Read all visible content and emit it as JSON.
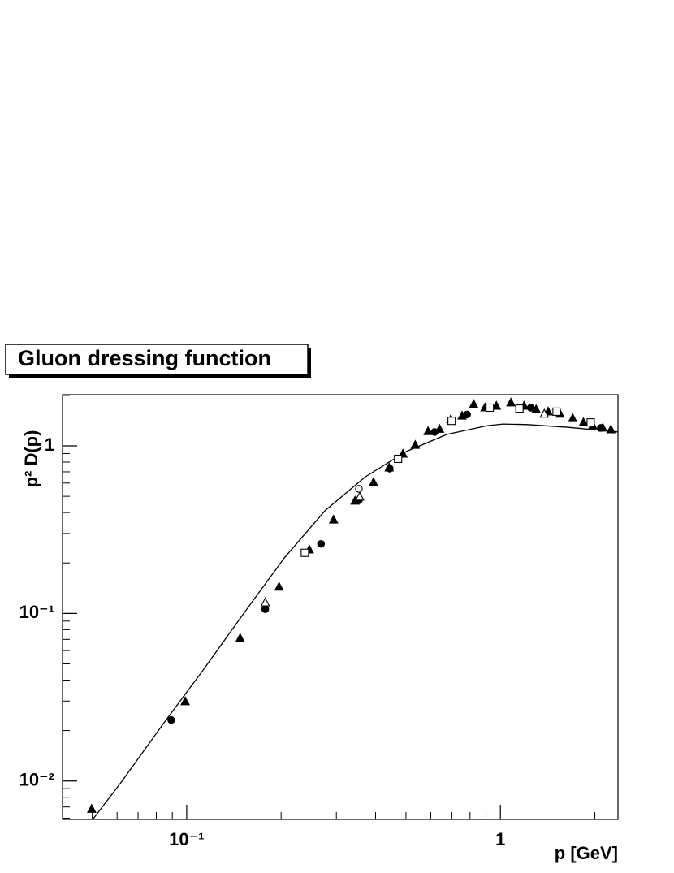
{
  "chart_data": {
    "type": "scatter",
    "title": "Gluon dressing function",
    "x_label": "p [GeV]",
    "y_label": "p² D(p)",
    "x_log": true,
    "y_log": true,
    "xlim": [
      0.0402,
      2.37
    ],
    "ylim": [
      0.0059,
      2.02
    ],
    "xticks": [
      {
        "value": 0.1,
        "label": "10⁻¹"
      },
      1
    ],
    "yticks": [
      {
        "value": 0.01,
        "label": "10⁻²"
      },
      {
        "value": 0.1,
        "label": "10⁻¹"
      },
      1
    ],
    "xminorticks": [
      0.05,
      0.06,
      0.07,
      0.08,
      0.09,
      0.2,
      0.3,
      0.4,
      0.5,
      0.6,
      0.7,
      0.8,
      0.9,
      2
    ],
    "yminorticks": [
      0.006,
      0.007,
      0.008,
      0.009,
      0.02,
      0.03,
      0.04,
      0.05,
      0.06,
      0.07,
      0.08,
      0.09,
      0.2,
      0.3,
      0.4,
      0.5,
      0.6,
      0.7,
      0.8,
      0.9,
      2
    ],
    "color": "#000000",
    "series": [
      {
        "marker": "triangle",
        "filled": true,
        "color": "#000000",
        "x": [
          0.0498,
          0.0989,
          0.148,
          0.197,
          0.246,
          0.294,
          0.344,
          0.394,
          0.442,
          0.489,
          0.535,
          0.588,
          0.64,
          0.695,
          0.755,
          0.822,
          0.893,
          0.971,
          1.08,
          1.19,
          1.3,
          1.42,
          1.55,
          1.7,
          1.84,
          1.97,
          2.12,
          2.25
        ],
        "values": [
          0.0068,
          0.0298,
          0.0711,
          0.144,
          0.24,
          0.362,
          0.469,
          0.606,
          0.74,
          0.895,
          1.01,
          1.22,
          1.26,
          1.44,
          1.51,
          1.77,
          1.69,
          1.73,
          1.81,
          1.73,
          1.65,
          1.6,
          1.55,
          1.46,
          1.38,
          1.32,
          1.28,
          1.25
        ]
      },
      {
        "marker": "circle",
        "filled": true,
        "color": "#000000",
        "x": [
          0.0893,
          0.178,
          0.268,
          0.354,
          0.444,
          0.617,
          0.783,
          1.25,
          2.09
        ],
        "values": [
          0.0231,
          0.106,
          0.26,
          0.474,
          0.732,
          1.21,
          1.54,
          1.69,
          1.28
        ]
      },
      {
        "marker": "square",
        "filled": false,
        "color": "#000000",
        "x": [
          0.238,
          0.472,
          0.699,
          0.925,
          1.15,
          1.51,
          1.94
        ],
        "values": [
          0.23,
          0.837,
          1.41,
          1.69,
          1.67,
          1.6,
          1.38
        ]
      },
      {
        "marker": "triangle",
        "filled": false,
        "color": "#000000",
        "x": [
          0.178,
          0.356,
          1.38
        ],
        "values": [
          0.116,
          0.496,
          1.55
        ]
      },
      {
        "marker": "circle",
        "filled": false,
        "color": "#000000",
        "x": [
          0.354
        ],
        "values": [
          0.554
        ]
      }
    ],
    "curve": {
      "color": "#000000",
      "x": [
        0.0502,
        0.062,
        0.0837,
        0.1125,
        0.152,
        0.205,
        0.276,
        0.371,
        0.501,
        0.675,
        0.909,
        1.02,
        1.22,
        1.65,
        2.37
      ],
      "values": [
        0.0059,
        0.0099,
        0.0216,
        0.0456,
        0.1,
        0.215,
        0.41,
        0.654,
        0.925,
        1.17,
        1.32,
        1.35,
        1.34,
        1.29,
        1.21
      ]
    }
  }
}
